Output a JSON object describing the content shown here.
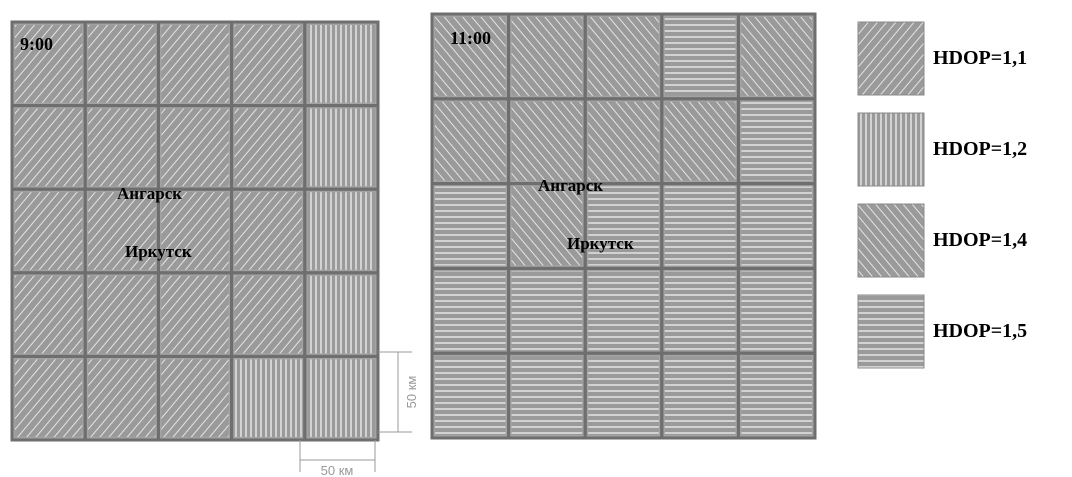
{
  "panels": [
    {
      "time": "9:00",
      "cities": [
        "Ангарск",
        "Иркутск"
      ],
      "scale_labels": [
        "50 км",
        "50 км"
      ]
    },
    {
      "time": "11:00",
      "cities": [
        "Ангарск",
        "Иркутск"
      ]
    }
  ],
  "legend": [
    {
      "label": "HDOP=1,1"
    },
    {
      "label": "HDOP=1,2"
    },
    {
      "label": "HDOP=1,4"
    },
    {
      "label": "HDOP=1,5"
    }
  ]
}
